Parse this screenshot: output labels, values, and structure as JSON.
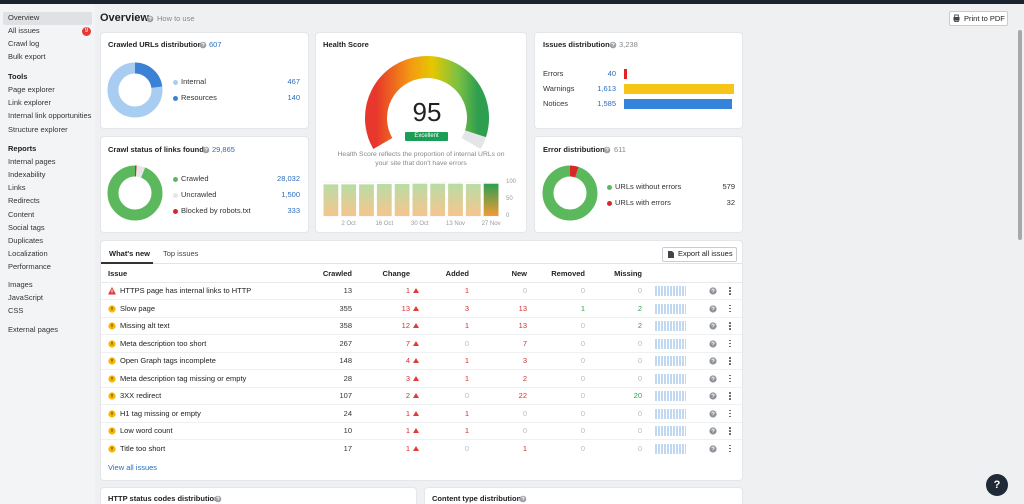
{
  "sidebar": {
    "main": [
      "Overview",
      "All issues",
      "Crawl log",
      "Bulk export"
    ],
    "badge": 9,
    "tools": {
      "heading": "Tools",
      "items": [
        "Page explorer",
        "Link explorer",
        "Internal link opportunities",
        "Structure explorer"
      ]
    },
    "reports": {
      "heading": "Reports",
      "items": [
        "Internal pages",
        "Indexability",
        "Links",
        "Redirects",
        "Content",
        "Social tags",
        "Duplicates",
        "Localization",
        "Performance"
      ]
    },
    "resources": [
      "Images",
      "JavaScript",
      "CSS"
    ],
    "external": [
      "External pages"
    ]
  },
  "header": {
    "title": "Overview",
    "help": "How to use",
    "print": "Print to PDF"
  },
  "crawled_urls": {
    "title": "Crawled URLs distribution",
    "total": 607,
    "series": [
      {
        "name": "Internal",
        "value": 467,
        "color": "#a9cdf0"
      },
      {
        "name": "Resources",
        "value": 140,
        "color": "#3b82d6"
      }
    ]
  },
  "health": {
    "title": "Health Score",
    "score": 95,
    "max": 100,
    "rating": "Excellent",
    "description": "Health Score reflects the proportion of internal URLs on your site that don't have errors",
    "history": {
      "categories": [
        null,
        "2 Oct",
        null,
        "16 Oct",
        null,
        "30 Oct",
        null,
        "13 Nov",
        null,
        "27 Nov"
      ],
      "values": [
        93,
        93,
        93,
        94,
        94,
        95,
        95,
        95,
        94,
        95
      ],
      "ylim": [
        0,
        100
      ],
      "yticks": [
        0,
        50,
        100
      ]
    }
  },
  "issues_distribution": {
    "title": "Issues distribution",
    "total": {
      "value": 3238,
      "label": "3,238"
    },
    "rows": [
      {
        "name": "Errors",
        "value": 40,
        "color": "#e02424"
      },
      {
        "name": "Warnings",
        "value": {
          "value": 1613,
          "label": "1,613"
        },
        "color": "#f5c518"
      },
      {
        "name": "Notices",
        "value": {
          "value": 1585,
          "label": "1,585"
        },
        "color": "#3584dc"
      }
    ]
  },
  "crawl_status": {
    "title": "Crawl status of links found",
    "total": {
      "value": 29865,
      "label": "29,865"
    },
    "series": [
      {
        "name": "Crawled",
        "value": {
          "value": 28032,
          "label": "28,032"
        },
        "color": "#5cb85c"
      },
      {
        "name": "Uncrawled",
        "value": {
          "value": 1500,
          "label": "1,500"
        },
        "color": "#e6e6e6"
      },
      {
        "name": "Blocked by robots.txt",
        "value": 333,
        "color": "#d62828"
      }
    ]
  },
  "error_distribution": {
    "title": "Error distribution",
    "total": 611,
    "series": [
      {
        "name": "URLs without errors",
        "value": 579,
        "color": "#5cb85c"
      },
      {
        "name": "URLs with errors",
        "value": 32,
        "color": "#d62828"
      }
    ]
  },
  "issues_table": {
    "tabs": [
      "What's new",
      "Top issues"
    ],
    "export": "Export all issues",
    "columns": [
      "Issue",
      "Crawled",
      "Change",
      "Added",
      "New",
      "Removed",
      "Missing"
    ],
    "rows": [
      {
        "issue": "HTTPS page has internal links to HTTP",
        "severity": "error",
        "values": [
          13,
          1,
          1,
          0,
          0,
          0
        ]
      },
      {
        "issue": "Slow page",
        "severity": "warning",
        "values": [
          355,
          13,
          3,
          13,
          1,
          2
        ]
      },
      {
        "issue": "Missing alt text",
        "severity": "warning",
        "values": [
          358,
          12,
          1,
          13,
          0,
          2
        ]
      },
      {
        "issue": "Meta description too short",
        "severity": "warning",
        "values": [
          267,
          7,
          0,
          7,
          0,
          0
        ]
      },
      {
        "issue": "Open Graph tags incomplete",
        "severity": "warning",
        "values": [
          148,
          4,
          1,
          3,
          0,
          0
        ]
      },
      {
        "issue": "Meta description tag missing or empty",
        "severity": "warning",
        "values": [
          28,
          3,
          1,
          2,
          0,
          0
        ]
      },
      {
        "issue": "3XX redirect",
        "severity": "warning",
        "values": [
          107,
          2,
          0,
          22,
          0,
          20
        ]
      },
      {
        "issue": "H1 tag missing or empty",
        "severity": "warning",
        "values": [
          24,
          1,
          1,
          0,
          0,
          0
        ]
      },
      {
        "issue": "Low word count",
        "severity": "warning",
        "values": [
          10,
          1,
          1,
          0,
          0,
          0
        ]
      },
      {
        "issue": "Title too short",
        "severity": "warning",
        "values": [
          17,
          1,
          0,
          1,
          0,
          0
        ]
      }
    ],
    "view_all": "View all issues"
  },
  "bottom_cards": [
    "HTTP status codes distribution",
    "Content type distribution"
  ],
  "help_button": "?"
}
